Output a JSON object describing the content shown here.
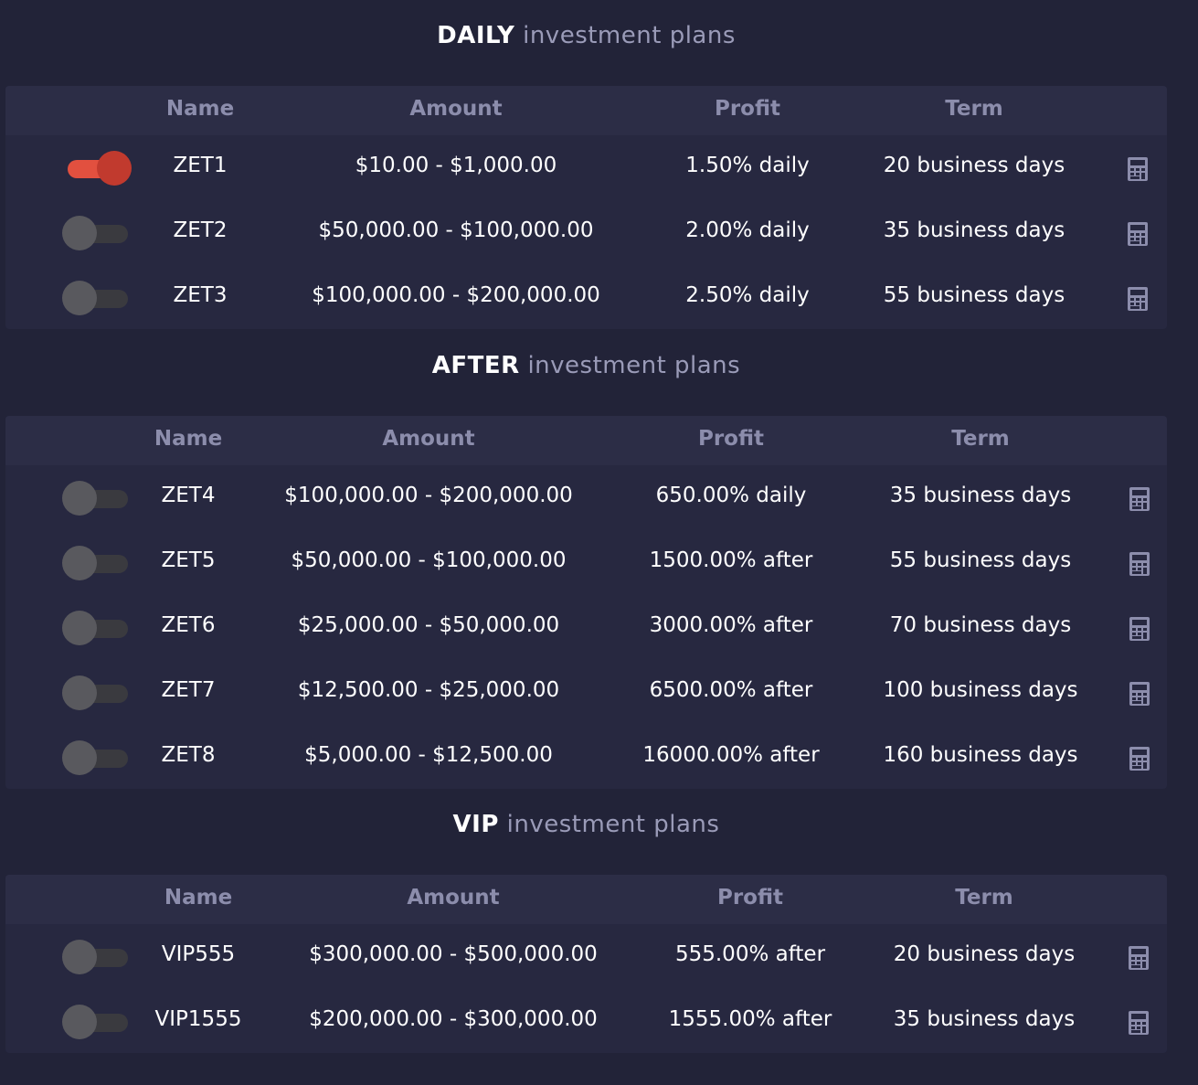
{
  "sections": [
    {
      "title_strong": "DAILY",
      "title_light": "investment plans",
      "headers": {
        "name": "Name",
        "amount": "Amount",
        "profit": "Profit",
        "term": "Term"
      },
      "rows": [
        {
          "name": "ZET1",
          "amount": "$10.00 - $1,000.00",
          "profit": "1.50% daily",
          "term": "20 business days",
          "selected": true
        },
        {
          "name": "ZET2",
          "amount": "$50,000.00 - $100,000.00",
          "profit": "2.00% daily",
          "term": "35 business days",
          "selected": false
        },
        {
          "name": "ZET3",
          "amount": "$100,000.00 - $200,000.00",
          "profit": "2.50% daily",
          "term": "55 business days",
          "selected": false
        }
      ]
    },
    {
      "title_strong": "AFTER",
      "title_light": "investment plans",
      "headers": {
        "name": "Name",
        "amount": "Amount",
        "profit": "Profit",
        "term": "Term"
      },
      "rows": [
        {
          "name": "ZET4",
          "amount": "$100,000.00 - $200,000.00",
          "profit": "650.00% daily",
          "term": "35 business days",
          "selected": false
        },
        {
          "name": "ZET5",
          "amount": "$50,000.00 - $100,000.00",
          "profit": "1500.00% after",
          "term": "55 business days",
          "selected": false
        },
        {
          "name": "ZET6",
          "amount": "$25,000.00 - $50,000.00",
          "profit": "3000.00% after",
          "term": "70 business days",
          "selected": false
        },
        {
          "name": "ZET7",
          "amount": "$12,500.00 - $25,000.00",
          "profit": "6500.00% after",
          "term": "100 business days",
          "selected": false
        },
        {
          "name": "ZET8",
          "amount": "$5,000.00 - $12,500.00",
          "profit": "16000.00% after",
          "term": "160 business days",
          "selected": false
        }
      ]
    },
    {
      "title_strong": "VIP",
      "title_light": "investment plans",
      "headers": {
        "name": "Name",
        "amount": "Amount",
        "profit": "Profit",
        "term": "Term"
      },
      "rows": [
        {
          "name": "VIP555",
          "amount": "$300,000.00 - $500,000.00",
          "profit": "555.00% after",
          "term": "20 business days",
          "selected": false
        },
        {
          "name": "VIP1555",
          "amount": "$200,000.00 - $300,000.00",
          "profit": "1555.00% after",
          "term": "35 business days",
          "selected": false
        }
      ]
    }
  ],
  "colors": {
    "background": "#222338",
    "panel": "#272840",
    "header_row": "#2c2d46",
    "header_text": "#8c8dac",
    "toggle_on": "#e2503f",
    "toggle_off": "#59595e",
    "calculator_icon": "#8c8dac"
  },
  "icons": {
    "row_action": "calculator-icon"
  }
}
